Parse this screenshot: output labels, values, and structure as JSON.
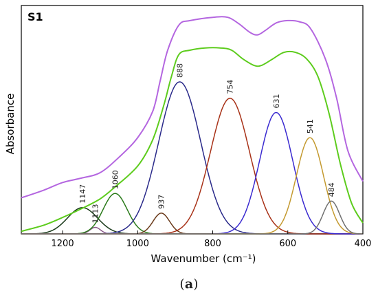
{
  "chart_data": {
    "type": "line",
    "panel_label": "S1",
    "xlabel": "Wavenumber (cm⁻¹)",
    "ylabel": "Absorbance",
    "xlim": [
      1310,
      400
    ],
    "ylim": [
      0,
      1.0
    ],
    "x_reversed": true,
    "grid": false,
    "xticks": [
      1200,
      1000,
      800,
      600,
      400
    ],
    "series": [
      {
        "kind": "measured",
        "color": "#b466e0",
        "points": [
          [
            1310,
            0.165
          ],
          [
            1250,
            0.2
          ],
          [
            1200,
            0.235
          ],
          [
            1150,
            0.255
          ],
          [
            1100,
            0.28
          ],
          [
            1050,
            0.35
          ],
          [
            1000,
            0.44
          ],
          [
            960,
            0.56
          ],
          [
            940,
            0.7
          ],
          [
            920,
            0.84
          ],
          [
            890,
            0.955
          ],
          [
            860,
            0.975
          ],
          [
            800,
            0.99
          ],
          [
            760,
            0.99
          ],
          [
            730,
            0.96
          ],
          [
            700,
            0.92
          ],
          [
            680,
            0.91
          ],
          [
            660,
            0.93
          ],
          [
            630,
            0.965
          ],
          [
            600,
            0.975
          ],
          [
            570,
            0.97
          ],
          [
            540,
            0.94
          ],
          [
            500,
            0.8
          ],
          [
            470,
            0.62
          ],
          [
            440,
            0.38
          ],
          [
            400,
            0.24
          ]
        ]
      },
      {
        "kind": "fitted-envelope",
        "color": "#5dcc1d",
        "points": [
          [
            1310,
            0.012
          ],
          [
            1250,
            0.04
          ],
          [
            1200,
            0.075
          ],
          [
            1150,
            0.115
          ],
          [
            1100,
            0.16
          ],
          [
            1060,
            0.215
          ],
          [
            1000,
            0.31
          ],
          [
            960,
            0.43
          ],
          [
            930,
            0.59
          ],
          [
            910,
            0.72
          ],
          [
            890,
            0.82
          ],
          [
            860,
            0.84
          ],
          [
            820,
            0.85
          ],
          [
            780,
            0.85
          ],
          [
            750,
            0.84
          ],
          [
            720,
            0.8
          ],
          [
            690,
            0.77
          ],
          [
            670,
            0.77
          ],
          [
            640,
            0.8
          ],
          [
            610,
            0.83
          ],
          [
            580,
            0.83
          ],
          [
            550,
            0.8
          ],
          [
            520,
            0.72
          ],
          [
            490,
            0.55
          ],
          [
            460,
            0.32
          ],
          [
            430,
            0.14
          ],
          [
            400,
            0.05
          ]
        ]
      }
    ],
    "peaks": [
      {
        "label": "1147",
        "center": 1147,
        "height": 0.12,
        "width": 40,
        "color": "#1a3a1a"
      },
      {
        "label": "1113",
        "center": 1113,
        "height": 0.03,
        "width": 14,
        "color": "#8a5a8a"
      },
      {
        "label": "1060",
        "center": 1060,
        "height": 0.185,
        "width": 32,
        "color": "#2a7a1a"
      },
      {
        "label": "937",
        "center": 937,
        "height": 0.095,
        "width": 22,
        "color": "#6a3a1a"
      },
      {
        "label": "888",
        "center": 888,
        "height": 0.695,
        "width": 56,
        "color": "#2a2a8a"
      },
      {
        "label": "754",
        "center": 754,
        "height": 0.62,
        "width": 52,
        "color": "#a83218"
      },
      {
        "label": "631",
        "center": 631,
        "height": 0.555,
        "width": 44,
        "color": "#3a2ad0"
      },
      {
        "label": "541",
        "center": 541,
        "height": 0.44,
        "width": 36,
        "color": "#c49a30"
      },
      {
        "label": "484",
        "center": 484,
        "height": 0.15,
        "width": 22,
        "color": "#707070"
      }
    ]
  },
  "caption": {
    "open": "(",
    "letter": "a",
    "close": ")"
  }
}
